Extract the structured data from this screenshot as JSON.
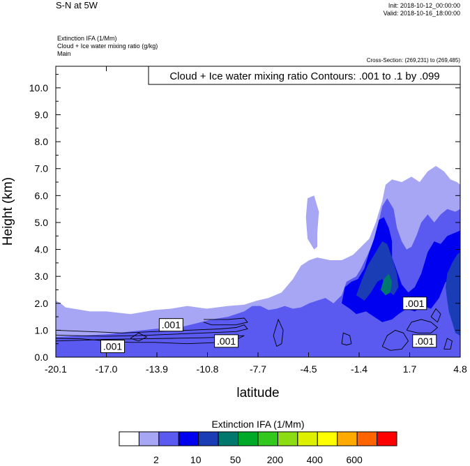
{
  "header": {
    "title": "S-N at 5W",
    "init": "Init: 2018-10-12_00:00:00",
    "valid": "Valid: 2018-10-16_18:00:00",
    "subtitle_lines": [
      "Extinction IFA   (1/Mm)",
      "Cloud + Ice water mixing ratio   (g/kg)",
      "Main"
    ],
    "cross_section": "Cross-Section: (269,231) to (269,485)"
  },
  "chart_data": {
    "type": "heatmap",
    "title": "S-N at 5W",
    "xlabel": "latitude",
    "ylabel": "Height (km)",
    "xlim": [
      -20.1,
      4.8
    ],
    "ylim": [
      0.0,
      10.8
    ],
    "x_ticks": [
      "-20.1",
      "-17.0",
      "-13.9",
      "-10.8",
      "-7.7",
      "-4.5",
      "-1.4",
      "1.7",
      "4.8"
    ],
    "y_ticks": [
      "0.0",
      "1.0",
      "2.0",
      "3.0",
      "4.0",
      "5.0",
      "6.0",
      "7.0",
      "8.0",
      "9.0",
      "10.0"
    ],
    "contour_info": "Cloud + Ice water mixing ratio Contours: .001 to .1 by .099",
    "contour_labels": [
      {
        "text": ".001",
        "lat": -16.6,
        "h": 0.4
      },
      {
        "text": ".001",
        "lat": -13.0,
        "h": 1.2
      },
      {
        "text": ".001",
        "lat": -9.6,
        "h": 0.6
      },
      {
        "text": ".001",
        "lat": 2.0,
        "h": 2.0
      },
      {
        "text": ".001",
        "lat": 2.6,
        "h": 0.6
      }
    ],
    "colorbar": {
      "title": "Extinction IFA  (1/Mm)",
      "colors": [
        "#ffffff",
        "#a6a6f5",
        "#5a5af0",
        "#0000f0",
        "#1a3cb4",
        "#00786e",
        "#00aa28",
        "#32c81e",
        "#8cdc14",
        "#dcf000",
        "#ffff00",
        "#ffaa00",
        "#ff6400",
        "#ff0000"
      ],
      "labels": [
        "2",
        "10",
        "50",
        "200",
        "400",
        "600"
      ]
    },
    "fields": [
      {
        "level": 1,
        "color": "#a6a6f5",
        "polygon": [
          [
            -20.1,
            0
          ],
          [
            -20.1,
            2.1
          ],
          [
            -19.8,
            2.0
          ],
          [
            -19.5,
            1.85
          ],
          [
            -19.0,
            1.8
          ],
          [
            -18.0,
            1.7
          ],
          [
            -17.0,
            1.7
          ],
          [
            -15.5,
            1.6
          ],
          [
            -14.0,
            1.75
          ],
          [
            -13.0,
            1.8
          ],
          [
            -12.0,
            1.9
          ],
          [
            -10.8,
            1.8
          ],
          [
            -9.5,
            1.9
          ],
          [
            -8.5,
            1.95
          ],
          [
            -7.7,
            2.1
          ],
          [
            -7.0,
            2.2
          ],
          [
            -6.2,
            2.4
          ],
          [
            -5.5,
            2.9
          ],
          [
            -5.0,
            3.4
          ],
          [
            -4.5,
            3.6
          ],
          [
            -4.0,
            3.7
          ],
          [
            -3.2,
            3.6
          ],
          [
            -2.5,
            3.6
          ],
          [
            -1.8,
            3.8
          ],
          [
            -1.3,
            4.1
          ],
          [
            -0.8,
            4.4
          ],
          [
            -0.4,
            5.0
          ],
          [
            0.0,
            5.8
          ],
          [
            0.2,
            6.4
          ],
          [
            0.6,
            6.6
          ],
          [
            1.2,
            6.5
          ],
          [
            1.8,
            6.7
          ],
          [
            2.3,
            6.5
          ],
          [
            2.8,
            6.9
          ],
          [
            3.3,
            7.1
          ],
          [
            3.8,
            6.9
          ],
          [
            4.2,
            6.6
          ],
          [
            4.6,
            6.5
          ],
          [
            4.8,
            6.4
          ],
          [
            4.8,
            0
          ]
        ]
      },
      {
        "level": 1,
        "color": "#a6a6f5",
        "polygon": [
          [
            -4.2,
            4.0
          ],
          [
            -4.6,
            4.4
          ],
          [
            -4.7,
            5.2
          ],
          [
            -4.6,
            5.9
          ],
          [
            -4.2,
            6.0
          ],
          [
            -3.9,
            5.4
          ],
          [
            -4.0,
            4.6
          ],
          [
            -4.0,
            4.1
          ]
        ]
      },
      {
        "level": 2,
        "color": "#5a5af0",
        "polygon": [
          [
            -20.1,
            0
          ],
          [
            -20.1,
            0.75
          ],
          [
            -18.5,
            0.8
          ],
          [
            -17.0,
            0.85
          ],
          [
            -15.5,
            0.95
          ],
          [
            -14.0,
            1.05
          ],
          [
            -12.5,
            1.1
          ],
          [
            -11.5,
            1.25
          ],
          [
            -10.5,
            1.4
          ],
          [
            -9.5,
            1.5
          ],
          [
            -9.0,
            1.6
          ],
          [
            -8.5,
            1.7
          ],
          [
            -8.0,
            1.9
          ],
          [
            -7.5,
            1.9
          ],
          [
            -7.0,
            1.75
          ],
          [
            -6.5,
            1.8
          ],
          [
            -6.0,
            1.9
          ],
          [
            -5.5,
            1.8
          ],
          [
            -5.0,
            1.85
          ],
          [
            -4.5,
            2.0
          ],
          [
            -4.0,
            2.1
          ],
          [
            -3.5,
            2.2
          ],
          [
            -3.0,
            2.0
          ],
          [
            -2.5,
            2.3
          ],
          [
            -2.2,
            2.8
          ],
          [
            -1.9,
            2.9
          ],
          [
            -1.6,
            3.0
          ],
          [
            -1.3,
            3.3
          ],
          [
            -0.9,
            3.8
          ],
          [
            -0.6,
            4.2
          ],
          [
            -0.3,
            4.8
          ],
          [
            0.0,
            5.6
          ],
          [
            0.3,
            5.9
          ],
          [
            0.7,
            5.5
          ],
          [
            0.9,
            4.8
          ],
          [
            1.2,
            4.3
          ],
          [
            1.5,
            4.0
          ],
          [
            1.8,
            4.1
          ],
          [
            2.1,
            4.5
          ],
          [
            2.4,
            5.0
          ],
          [
            2.8,
            5.3
          ],
          [
            3.2,
            5.0
          ],
          [
            3.6,
            5.3
          ],
          [
            4.0,
            5.5
          ],
          [
            4.5,
            5.4
          ],
          [
            4.8,
            5.5
          ],
          [
            4.8,
            0
          ]
        ]
      },
      {
        "level": 3,
        "color": "#0000f0",
        "polygon": [
          [
            -2.5,
            2.0
          ],
          [
            -2.3,
            2.6
          ],
          [
            -1.9,
            2.8
          ],
          [
            -1.5,
            2.9
          ],
          [
            -1.1,
            3.3
          ],
          [
            -0.8,
            3.9
          ],
          [
            -0.5,
            4.4
          ],
          [
            -0.2,
            5.1
          ],
          [
            0.1,
            5.2
          ],
          [
            0.4,
            4.8
          ],
          [
            0.6,
            4.3
          ],
          [
            0.6,
            3.7
          ],
          [
            0.9,
            3.2
          ],
          [
            1.2,
            2.7
          ],
          [
            1.6,
            2.4
          ],
          [
            2.0,
            2.6
          ],
          [
            2.4,
            3.1
          ],
          [
            2.8,
            3.9
          ],
          [
            3.2,
            4.3
          ],
          [
            3.6,
            4.2
          ],
          [
            4.0,
            4.5
          ],
          [
            4.4,
            4.6
          ],
          [
            4.8,
            4.7
          ],
          [
            4.8,
            2.4
          ],
          [
            4.3,
            2.6
          ],
          [
            3.9,
            2.8
          ],
          [
            3.5,
            2.2
          ],
          [
            3.0,
            1.8
          ],
          [
            2.5,
            1.9
          ],
          [
            2.0,
            1.7
          ],
          [
            1.5,
            1.8
          ],
          [
            1.0,
            1.6
          ],
          [
            0.6,
            1.4
          ],
          [
            0.0,
            1.3
          ],
          [
            -0.5,
            1.5
          ],
          [
            -1.0,
            1.7
          ],
          [
            -1.6,
            1.6
          ],
          [
            -2.0,
            1.8
          ]
        ]
      },
      {
        "level": 4,
        "color": "#1a3cb4",
        "polygon": [
          [
            -1.6,
            2.3
          ],
          [
            -1.3,
            2.8
          ],
          [
            -0.9,
            3.4
          ],
          [
            -0.6,
            3.7
          ],
          [
            -0.3,
            4.0
          ],
          [
            0.0,
            4.3
          ],
          [
            0.3,
            4.2
          ],
          [
            0.6,
            3.7
          ],
          [
            0.9,
            3.1
          ],
          [
            1.0,
            2.6
          ],
          [
            0.7,
            2.3
          ],
          [
            0.3,
            2.5
          ],
          [
            0.0,
            2.9
          ],
          [
            -0.3,
            2.8
          ],
          [
            -0.7,
            2.4
          ],
          [
            -1.1,
            2.1
          ]
        ]
      },
      {
        "level": 4,
        "color": "#1a3cb4",
        "polygon": [
          [
            3.9,
            2.6
          ],
          [
            4.0,
            3.1
          ],
          [
            4.3,
            3.5
          ],
          [
            4.6,
            3.8
          ],
          [
            4.8,
            3.9
          ],
          [
            4.8,
            0.8
          ],
          [
            4.5,
            0.9
          ],
          [
            4.3,
            1.3
          ],
          [
            4.1,
            1.7
          ],
          [
            4.0,
            2.1
          ]
        ]
      },
      {
        "level": 5,
        "color": "#00786e",
        "polygon": [
          [
            -0.1,
            2.5
          ],
          [
            0.1,
            2.9
          ],
          [
            0.4,
            3.1
          ],
          [
            0.6,
            2.8
          ],
          [
            0.5,
            2.4
          ],
          [
            0.2,
            2.3
          ]
        ]
      }
    ]
  }
}
